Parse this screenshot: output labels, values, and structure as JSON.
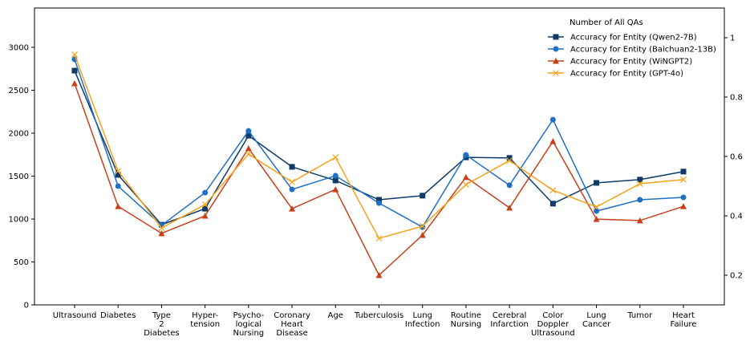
{
  "chart_data": {
    "type": "line",
    "legend_title": "Number of All QAs",
    "legend": "upper right",
    "categories": [
      "Ultrasound",
      "Diabetes",
      "Type\n2\nDiabetes",
      "Hyper-\ntension",
      "Psycho-\nlogical\nNursing",
      "Coronary\nHeart\nDisease",
      "Age",
      "Tuberculosis",
      "Lung\nInfection",
      "Routine\nNursing",
      "Cerebral\nInfarction",
      "Color\nDoppler\nUltrasound",
      "Lung\nCancer",
      "Tumor",
      "Heart\nFailure"
    ],
    "ylim": [
      0,
      3458
    ],
    "yticks": [
      0,
      500,
      1000,
      1500,
      2000,
      2500,
      3000
    ],
    "y2lim": [
      0.1,
      1.1
    ],
    "y2ticks": [
      0.2,
      0.4,
      0.6,
      0.8,
      1.0
    ],
    "series": [
      {
        "name": "Accuracy for Entity (Qwen2-7B)",
        "color": "#0d3a66",
        "marker": "square",
        "axis": "y2",
        "values": [
          0.889,
          0.538,
          0.37,
          0.424,
          0.67,
          0.565,
          0.519,
          0.454,
          0.468,
          0.597,
          0.595,
          0.441,
          0.511,
          0.522,
          0.549
        ]
      },
      {
        "name": "Accuracy for Entity (Baichuan2-13B)",
        "color": "#1f6fc5",
        "marker": "circle",
        "axis": "y2",
        "values": [
          0.927,
          0.5,
          0.368,
          0.478,
          0.686,
          0.489,
          0.535,
          0.443,
          0.362,
          0.605,
          0.503,
          0.724,
          0.416,
          0.454,
          0.462
        ]
      },
      {
        "name": "Accuracy for Entity (WiNGPT2)",
        "color": "#c8401a",
        "marker": "triangle",
        "axis": "y2",
        "values": [
          0.846,
          0.432,
          0.341,
          0.4,
          0.627,
          0.424,
          0.489,
          0.2,
          0.335,
          0.53,
          0.427,
          0.651,
          0.389,
          0.384,
          0.432
        ]
      },
      {
        "name": "Accuracy for Entity (GPT-4o)",
        "color": "#f5a31a",
        "marker": "x",
        "axis": "y2",
        "values": [
          0.943,
          0.551,
          0.359,
          0.438,
          0.608,
          0.514,
          0.597,
          0.324,
          0.365,
          0.505,
          0.586,
          0.486,
          0.43,
          0.508,
          0.522
        ]
      }
    ]
  }
}
